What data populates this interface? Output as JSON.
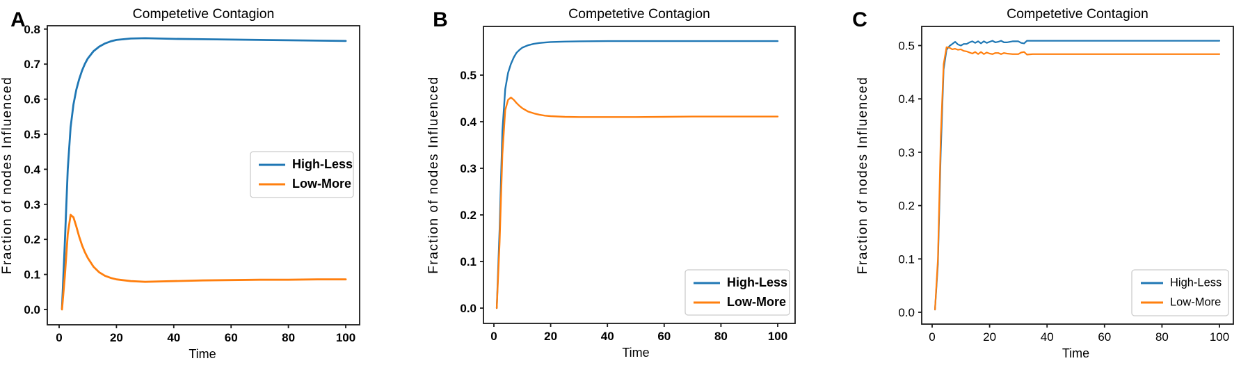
{
  "colors": {
    "high_less": "#1f77b4",
    "low_more": "#ff7f0e",
    "axis": "#1a1a1a",
    "text": "#000000",
    "legend_border": "#cccccc",
    "legend_fill": "#ffffff"
  },
  "chart_data": [
    {
      "type": "line",
      "panel_label": "A",
      "title": "Competetive Contagion",
      "xlabel": "Time",
      "ylabel": "Fraction of nodes Influenced",
      "x_ticks": [
        0,
        20,
        40,
        60,
        80,
        100
      ],
      "y_ticks": [
        0.0,
        0.1,
        0.2,
        0.3,
        0.4,
        0.5,
        0.6,
        0.7,
        0.8
      ],
      "xlim": [
        -4,
        105
      ],
      "ylim": [
        -0.044,
        0.81
      ],
      "grid": false,
      "bold_ticks": true,
      "legend": {
        "position": "center right",
        "bold": true,
        "entries": [
          "High-Less",
          "Low-More"
        ]
      },
      "x": [
        1,
        2,
        3,
        4,
        5,
        6,
        7,
        8,
        9,
        10,
        12,
        14,
        16,
        18,
        20,
        25,
        30,
        35,
        40,
        50,
        60,
        70,
        80,
        90,
        100
      ],
      "series": [
        {
          "name": "High-Less",
          "color_key": "high_less",
          "values": [
            0.003,
            0.19,
            0.4,
            0.52,
            0.585,
            0.627,
            0.657,
            0.682,
            0.701,
            0.716,
            0.737,
            0.75,
            0.759,
            0.765,
            0.769,
            0.773,
            0.774,
            0.773,
            0.772,
            0.771,
            0.77,
            0.769,
            0.768,
            0.767,
            0.766
          ]
        },
        {
          "name": "Low-More",
          "color_key": "low_more",
          "values": [
            0.0,
            0.095,
            0.215,
            0.27,
            0.263,
            0.237,
            0.208,
            0.183,
            0.163,
            0.147,
            0.122,
            0.106,
            0.096,
            0.09,
            0.086,
            0.081,
            0.079,
            0.08,
            0.081,
            0.083,
            0.084,
            0.085,
            0.085,
            0.086,
            0.086
          ]
        }
      ]
    },
    {
      "type": "line",
      "panel_label": "B",
      "title": "Competetive Contagion",
      "xlabel": "Time",
      "ylabel": "Fraction of nodes Influenced",
      "x_ticks": [
        0,
        20,
        40,
        60,
        80,
        100
      ],
      "y_ticks": [
        0.0,
        0.1,
        0.2,
        0.3,
        0.4,
        0.5
      ],
      "xlim": [
        -4,
        105
      ],
      "ylim": [
        -0.033,
        0.605
      ],
      "grid": false,
      "bold_ticks": true,
      "legend": {
        "position": "lower right",
        "bold": true,
        "entries": [
          "High-Less",
          "Low-More"
        ]
      },
      "x": [
        1,
        2,
        3,
        4,
        5,
        6,
        7,
        8,
        9,
        10,
        12,
        14,
        16,
        18,
        20,
        25,
        30,
        40,
        50,
        60,
        70,
        80,
        90,
        100
      ],
      "series": [
        {
          "name": "High-Less",
          "color_key": "high_less",
          "values": [
            0.0,
            0.17,
            0.38,
            0.47,
            0.505,
            0.524,
            0.538,
            0.548,
            0.554,
            0.559,
            0.564,
            0.567,
            0.569,
            0.57,
            0.571,
            0.572,
            0.5725,
            0.573,
            0.573,
            0.573,
            0.573,
            0.573,
            0.573,
            0.573
          ]
        },
        {
          "name": "Low-More",
          "color_key": "low_more",
          "values": [
            0.0,
            0.14,
            0.33,
            0.425,
            0.447,
            0.452,
            0.447,
            0.44,
            0.434,
            0.429,
            0.422,
            0.418,
            0.415,
            0.413,
            0.412,
            0.4105,
            0.41,
            0.41,
            0.41,
            0.4105,
            0.411,
            0.411,
            0.411,
            0.411
          ]
        }
      ]
    },
    {
      "type": "line",
      "panel_label": "C",
      "title": "Competetive Contagion",
      "xlabel": "Time",
      "ylabel": "Fraction of nodes Influenced",
      "x_ticks": [
        0,
        20,
        40,
        60,
        80,
        100
      ],
      "y_ticks": [
        0.0,
        0.1,
        0.2,
        0.3,
        0.4,
        0.5
      ],
      "xlim": [
        -4,
        105
      ],
      "ylim": [
        -0.022,
        0.535
      ],
      "grid": false,
      "bold_ticks": false,
      "legend": {
        "position": "lower right",
        "bold": false,
        "entries": [
          "High-Less",
          "Low-More"
        ]
      },
      "x": [
        1,
        2,
        3,
        4,
        5,
        6,
        7,
        8,
        9,
        10,
        11,
        12,
        13,
        14,
        15,
        16,
        17,
        18,
        19,
        20,
        21,
        22,
        23,
        24,
        25,
        26,
        28,
        30,
        31,
        32,
        33,
        35,
        40,
        50,
        60,
        70,
        80,
        90,
        100
      ],
      "series": [
        {
          "name": "High-Less",
          "color_key": "high_less",
          "values": [
            0.005,
            0.09,
            0.3,
            0.455,
            0.492,
            0.499,
            0.503,
            0.507,
            0.502,
            0.5,
            0.503,
            0.503,
            0.506,
            0.508,
            0.505,
            0.508,
            0.504,
            0.508,
            0.505,
            0.507,
            0.509,
            0.506,
            0.507,
            0.509,
            0.506,
            0.506,
            0.508,
            0.508,
            0.505,
            0.504,
            0.509,
            0.509,
            0.509,
            0.509,
            0.509,
            0.509,
            0.509,
            0.509,
            0.509
          ]
        },
        {
          "name": "Low-More",
          "color_key": "low_more",
          "values": [
            0.005,
            0.1,
            0.33,
            0.465,
            0.497,
            0.496,
            0.493,
            0.494,
            0.492,
            0.493,
            0.49,
            0.489,
            0.487,
            0.485,
            0.488,
            0.484,
            0.488,
            0.484,
            0.487,
            0.485,
            0.484,
            0.486,
            0.486,
            0.484,
            0.486,
            0.485,
            0.484,
            0.484,
            0.487,
            0.488,
            0.483,
            0.484,
            0.484,
            0.484,
            0.484,
            0.484,
            0.484,
            0.484,
            0.484
          ]
        }
      ]
    }
  ]
}
